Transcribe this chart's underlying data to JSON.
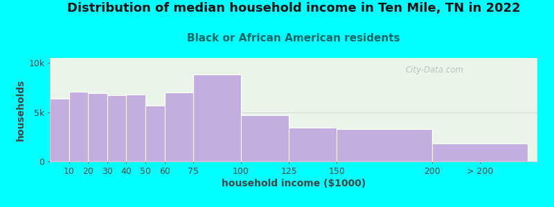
{
  "title": "Distribution of median household income in Ten Mile, TN in 2022",
  "subtitle": "Black or African American residents",
  "xlabel": "household income ($1000)",
  "ylabel": "households",
  "background_outer": "#00FFFF",
  "background_inner_top": "#e8f5e8",
  "background_inner_bottom": "#f5fff5",
  "bar_color": "#c4aee0",
  "bar_edge_color": "#c4aee0",
  "title_fontsize": 13,
  "subtitle_fontsize": 11,
  "axis_label_fontsize": 10,
  "tick_fontsize": 9,
  "watermark_text": "City-Data.com",
  "bin_edges": [
    0,
    10,
    20,
    30,
    40,
    50,
    60,
    75,
    100,
    125,
    150,
    200,
    250
  ],
  "tick_positions": [
    10,
    20,
    30,
    40,
    50,
    60,
    75,
    100,
    125,
    150,
    200
  ],
  "tick_labels": [
    "10",
    "20",
    "30",
    "40",
    "50",
    "60",
    "75",
    "100",
    "125",
    "150",
    "200"
  ],
  "gt200_label": "> 200",
  "gt200_tick": 225,
  "values": [
    6400,
    7100,
    6900,
    6700,
    6800,
    5700,
    7000,
    8800,
    4700,
    3400,
    3300,
    1800
  ],
  "ylim": [
    0,
    10500
  ],
  "yticks": [
    0,
    5000,
    10000
  ],
  "ytick_labels": [
    "0",
    "5k",
    "10k"
  ]
}
